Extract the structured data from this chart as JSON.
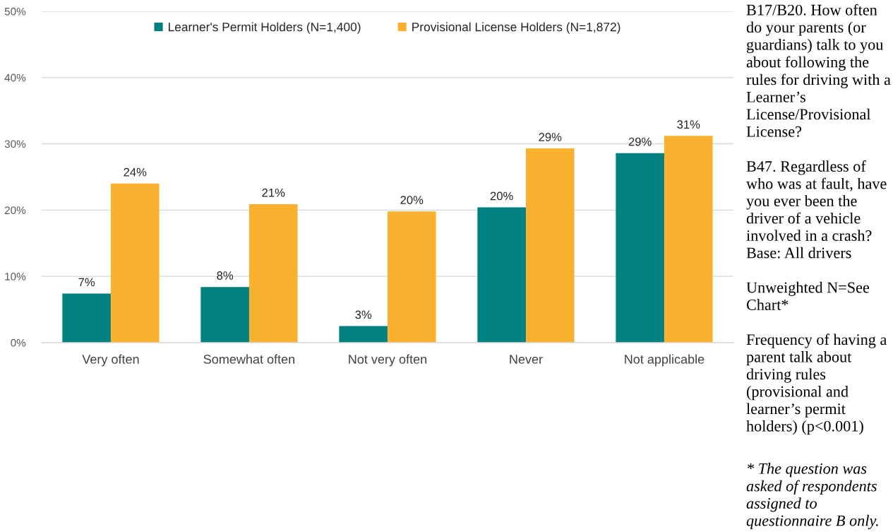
{
  "chart_data": {
    "type": "bar",
    "categories": [
      "Very often",
      "Somewhat often",
      "Not very often",
      "Never",
      "Not applicable"
    ],
    "series": [
      {
        "name": "Learner's Permit Holders (N=1,400)",
        "color": "#008080",
        "values": [
          7.4,
          8.4,
          2.5,
          20.4,
          28.6
        ],
        "value_labels": [
          "7%",
          "8%",
          "3%",
          "20%",
          "29%"
        ]
      },
      {
        "name": "Provisional License Holders (N=1,872)",
        "color": "#FAB12F",
        "values": [
          24.0,
          20.9,
          19.8,
          29.3,
          31.2
        ],
        "value_labels": [
          "24%",
          "21%",
          "20%",
          "29%",
          "31%"
        ]
      }
    ],
    "ylim": [
      0,
      50
    ],
    "yticks": [
      {
        "value": 0,
        "label": "0%"
      },
      {
        "value": 10,
        "label": "10%"
      },
      {
        "value": 20,
        "label": "20%"
      },
      {
        "value": 30,
        "label": "30%"
      },
      {
        "value": 40,
        "label": "40%"
      },
      {
        "value": 50,
        "label": "50%"
      }
    ],
    "grid": "y",
    "legend": "top",
    "annotations": [
      "B17/B20. How often do your parents (or guardians) talk to you about following the rules for driving with a Learner’s License/Provisional License?",
      "B47. Regardless of who was at fault, have you ever been the driver of a vehicle involved in a crash?\nBase: All drivers",
      "Unweighted N=See Chart*",
      "Frequency of having a parent talk about driving rules (provisional and learner’s permit holders) (p<0.001)",
      "* The question was asked of respondents assigned to questionnaire B only."
    ]
  }
}
